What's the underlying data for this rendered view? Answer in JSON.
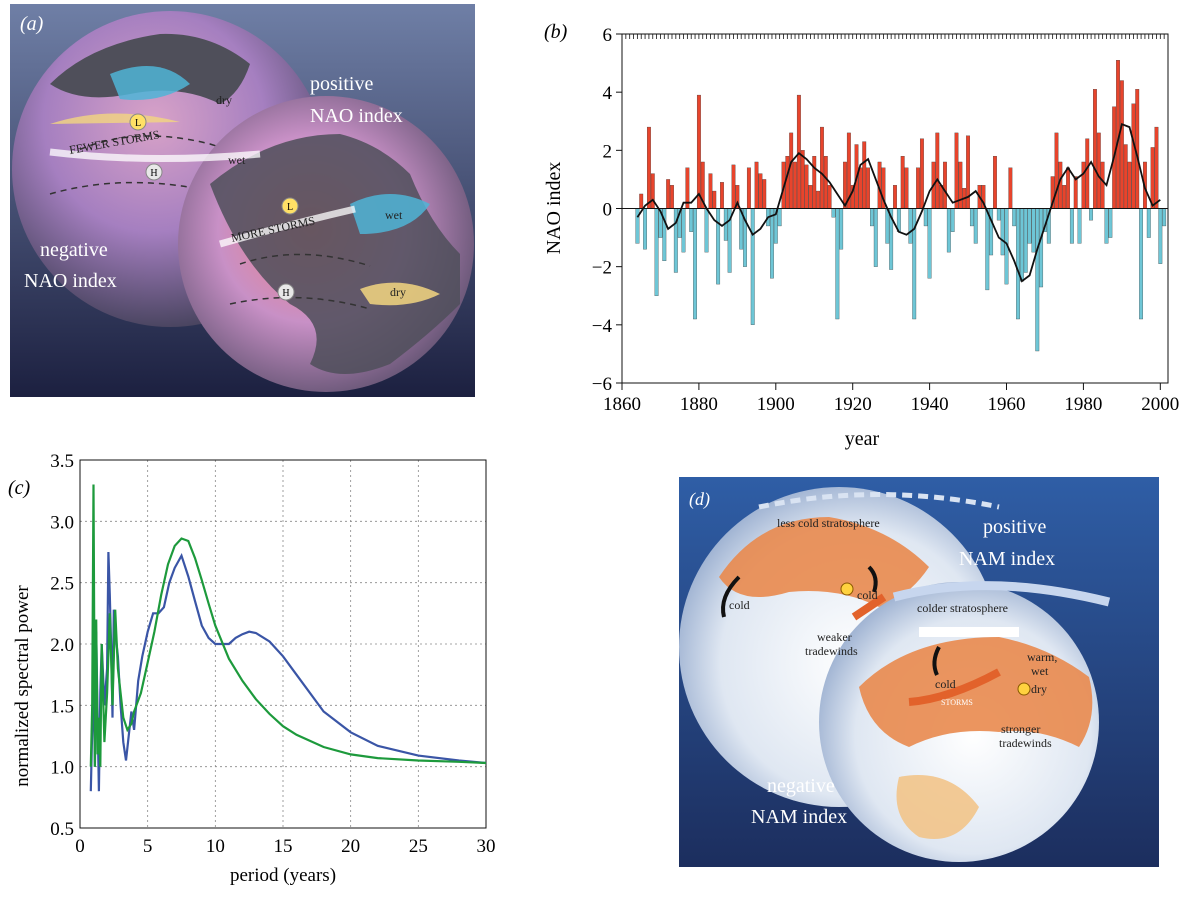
{
  "panel_a": {
    "label": "(a)",
    "text": {
      "positive_line1": "positive",
      "positive_line2": "NAO index",
      "negative_line1": "negative",
      "negative_line2": "NAO index",
      "fewer_storms": "FEWER STORMS",
      "more_storms": "MORE STORMS",
      "dry_top": "dry",
      "dry_bottom": "dry",
      "wet_top": "wet",
      "wet_bottom": "wet",
      "L": "L",
      "H": "H"
    }
  },
  "panel_d": {
    "label": "(d)",
    "text": {
      "less_cold": "less cold stratosphere",
      "positive_line1": "positive",
      "positive_line2": "NAM index",
      "cold_left": "cold",
      "cold_mid": "cold",
      "colder": "colder stratosphere",
      "weaker_line1": "weaker",
      "weaker_line2": "tradewinds",
      "warm_line1": "warm,",
      "warm_line2": "wet",
      "cold_right": "cold",
      "storms": "STORMS",
      "dry": "dry",
      "stronger_line1": "stronger",
      "stronger_line2": "tradewinds",
      "negative_line1": "negative",
      "negative_line2": "NAM index"
    }
  },
  "chart_data": [
    {
      "panel": "(b)",
      "type": "bar",
      "ylabel": "NAO index",
      "xlabel": "year",
      "xlim": [
        1860,
        2002
      ],
      "ylim": [
        -6,
        6
      ],
      "xticks": [
        "1860",
        "1880",
        "1900",
        "1920",
        "1940",
        "1960",
        "1980",
        "2000"
      ],
      "yticks": [
        "6",
        "4",
        "2",
        "0",
        "−2",
        "−4",
        "−6"
      ],
      "colors": {
        "positive": "#e8442c",
        "negative": "#6ec6d6"
      },
      "x": [
        1864,
        1865,
        1866,
        1867,
        1868,
        1869,
        1870,
        1871,
        1872,
        1873,
        1874,
        1875,
        1876,
        1877,
        1878,
        1879,
        1880,
        1881,
        1882,
        1883,
        1884,
        1885,
        1886,
        1887,
        1888,
        1889,
        1890,
        1891,
        1892,
        1893,
        1894,
        1895,
        1896,
        1897,
        1898,
        1899,
        1900,
        1901,
        1902,
        1903,
        1904,
        1905,
        1906,
        1907,
        1908,
        1909,
        1910,
        1911,
        1912,
        1913,
        1914,
        1915,
        1916,
        1917,
        1918,
        1919,
        1920,
        1921,
        1922,
        1923,
        1924,
        1925,
        1926,
        1927,
        1928,
        1929,
        1930,
        1931,
        1932,
        1933,
        1934,
        1935,
        1936,
        1937,
        1938,
        1939,
        1940,
        1941,
        1942,
        1943,
        1944,
        1945,
        1946,
        1947,
        1948,
        1949,
        1950,
        1951,
        1952,
        1953,
        1954,
        1955,
        1956,
        1957,
        1958,
        1959,
        1960,
        1961,
        1962,
        1963,
        1964,
        1965,
        1966,
        1967,
        1968,
        1969,
        1970,
        1971,
        1972,
        1973,
        1974,
        1975,
        1976,
        1977,
        1978,
        1979,
        1980,
        1981,
        1982,
        1983,
        1984,
        1985,
        1986,
        1987,
        1988,
        1989,
        1990,
        1991,
        1992,
        1993,
        1994,
        1995,
        1996,
        1997,
        1998,
        1999,
        2000,
        2001
      ],
      "values": [
        -1.2,
        0.5,
        -1.4,
        2.8,
        1.2,
        -3.0,
        -1.0,
        -1.8,
        1.0,
        0.8,
        -2.2,
        -1.0,
        -1.5,
        1.4,
        -0.8,
        -3.8,
        3.9,
        1.6,
        -1.5,
        1.2,
        0.6,
        -2.6,
        0.9,
        -1.1,
        -2.2,
        1.5,
        0.8,
        -1.4,
        -2.0,
        1.4,
        -4.0,
        1.6,
        1.2,
        1.0,
        -0.6,
        -2.4,
        -1.2,
        -0.6,
        1.6,
        1.8,
        2.6,
        1.6,
        3.9,
        2.0,
        1.5,
        0.8,
        1.8,
        0.6,
        2.8,
        1.8,
        0.8,
        -0.3,
        -3.8,
        -1.4,
        1.6,
        2.6,
        0.8,
        2.2,
        1.4,
        2.3,
        1.4,
        -0.6,
        -2.0,
        1.6,
        1.4,
        -1.2,
        -2.1,
        0.8,
        -0.8,
        1.8,
        1.4,
        -1.2,
        -3.8,
        1.4,
        2.4,
        -0.6,
        -2.4,
        1.6,
        2.6,
        0.8,
        1.6,
        -1.5,
        -0.8,
        2.6,
        1.6,
        0.7,
        2.5,
        -0.6,
        -1.2,
        0.8,
        0.8,
        -2.8,
        -1.6,
        1.8,
        -0.4,
        -1.6,
        -2.6,
        1.4,
        -0.6,
        -3.8,
        -2.5,
        -2.2,
        -1.2,
        -1.5,
        -4.9,
        -2.7,
        -0.8,
        -1.2,
        1.1,
        2.6,
        1.6,
        0.8,
        1.4,
        -1.2,
        1.1,
        -1.2,
        1.6,
        2.4,
        -0.4,
        4.1,
        2.6,
        1.6,
        -1.2,
        -1.0,
        3.5,
        5.1,
        4.4,
        2.2,
        1.6,
        3.6,
        4.1,
        -3.8,
        1.6,
        -1.0,
        2.1,
        2.8,
        -1.9,
        -0.6
      ],
      "smooth_series": {
        "name": "",
        "x": [
          1864,
          1866,
          1868,
          1870,
          1872,
          1874,
          1876,
          1878,
          1880,
          1882,
          1884,
          1886,
          1888,
          1890,
          1892,
          1894,
          1896,
          1898,
          1900,
          1902,
          1904,
          1906,
          1908,
          1910,
          1912,
          1914,
          1916,
          1918,
          1920,
          1922,
          1924,
          1926,
          1928,
          1930,
          1932,
          1934,
          1936,
          1938,
          1940,
          1942,
          1944,
          1946,
          1948,
          1950,
          1952,
          1954,
          1956,
          1958,
          1960,
          1962,
          1964,
          1966,
          1968,
          1970,
          1972,
          1974,
          1976,
          1978,
          1980,
          1982,
          1984,
          1986,
          1988,
          1990,
          1992,
          1994,
          1996,
          1998,
          2000
        ],
        "values": [
          -0.3,
          0.1,
          0.3,
          -0.1,
          -0.7,
          -0.5,
          0.2,
          0.2,
          0.5,
          0.0,
          -0.4,
          -0.6,
          -0.4,
          0.2,
          -0.4,
          -0.9,
          -0.7,
          -0.3,
          -0.2,
          0.7,
          1.6,
          1.9,
          1.7,
          1.4,
          1.2,
          0.9,
          0.5,
          0.1,
          0.6,
          1.5,
          1.7,
          1.0,
          0.3,
          -0.3,
          -0.8,
          -0.9,
          -0.7,
          -0.1,
          0.6,
          1.0,
          0.6,
          0.2,
          0.3,
          0.4,
          0.6,
          0.2,
          -0.4,
          -1.0,
          -1.2,
          -1.8,
          -2.5,
          -2.3,
          -1.4,
          -0.6,
          0.2,
          1.0,
          1.4,
          1.0,
          1.2,
          1.6,
          1.1,
          0.8,
          1.8,
          2.9,
          2.8,
          1.8,
          0.7,
          0.1,
          0.3
        ]
      }
    },
    {
      "panel": "(c)",
      "type": "line",
      "ylabel": "normalized spectral power",
      "xlabel": "period (years)",
      "xlim": [
        0,
        30
      ],
      "ylim": [
        0.5,
        3.5
      ],
      "xticks": [
        "0",
        "5",
        "10",
        "15",
        "20",
        "25",
        "30"
      ],
      "yticks": [
        "3.5",
        "3.0",
        "2.5",
        "2.0",
        "1.5",
        "1.0",
        "0.5"
      ],
      "grid": true,
      "series": [
        {
          "color": "#3a55a6",
          "x": [
            0.8,
            0.9,
            1.0,
            1.1,
            1.2,
            1.3,
            1.4,
            1.5,
            1.6,
            1.8,
            2.0,
            2.1,
            2.2,
            2.3,
            2.4,
            2.5,
            2.6,
            2.8,
            3.0,
            3.2,
            3.4,
            3.6,
            3.8,
            4.0,
            4.3,
            4.6,
            5.0,
            5.4,
            5.8,
            6.2,
            6.6,
            7.0,
            7.5,
            8.0,
            8.5,
            9.0,
            9.5,
            10.0,
            10.5,
            11.0,
            11.5,
            12.0,
            12.5,
            13.0,
            14.0,
            15.0,
            16.0,
            18.0,
            20.0,
            22.0,
            25.0,
            28.0,
            30.0
          ],
          "values": [
            0.8,
            1.3,
            1.8,
            1.0,
            2.1,
            1.4,
            0.8,
            1.6,
            2.0,
            1.5,
            1.8,
            2.75,
            2.4,
            2.0,
            1.4,
            2.28,
            2.1,
            1.9,
            1.5,
            1.2,
            1.05,
            1.25,
            1.45,
            1.3,
            1.7,
            1.9,
            2.1,
            2.25,
            2.25,
            2.3,
            2.5,
            2.62,
            2.72,
            2.55,
            2.35,
            2.15,
            2.05,
            2.0,
            2.0,
            2.0,
            2.05,
            2.08,
            2.1,
            2.09,
            2.02,
            1.9,
            1.75,
            1.45,
            1.28,
            1.17,
            1.09,
            1.05,
            1.03
          ]
        },
        {
          "color": "#1d9a3c",
          "x": [
            0.8,
            0.9,
            1.0,
            1.1,
            1.2,
            1.3,
            1.4,
            1.5,
            1.6,
            1.8,
            2.0,
            2.2,
            2.4,
            2.6,
            2.8,
            3.0,
            3.2,
            3.5,
            3.8,
            4.0,
            4.5,
            5.0,
            5.5,
            6.0,
            6.5,
            7.0,
            7.5,
            8.0,
            8.5,
            9.0,
            9.5,
            10.0,
            11.0,
            12.0,
            13.0,
            14.0,
            15.0,
            16.0,
            18.0,
            20.0,
            22.0,
            25.0,
            28.0,
            30.0
          ],
          "values": [
            1.0,
            1.5,
            3.3,
            1.0,
            2.2,
            1.1,
            1.4,
            1.0,
            2.0,
            1.2,
            1.6,
            2.25,
            1.5,
            2.28,
            1.8,
            1.6,
            1.4,
            1.3,
            1.35,
            1.45,
            1.6,
            1.85,
            2.1,
            2.4,
            2.65,
            2.8,
            2.86,
            2.84,
            2.7,
            2.52,
            2.33,
            2.15,
            1.88,
            1.7,
            1.55,
            1.43,
            1.33,
            1.26,
            1.16,
            1.1,
            1.07,
            1.05,
            1.04,
            1.03
          ]
        }
      ]
    }
  ]
}
